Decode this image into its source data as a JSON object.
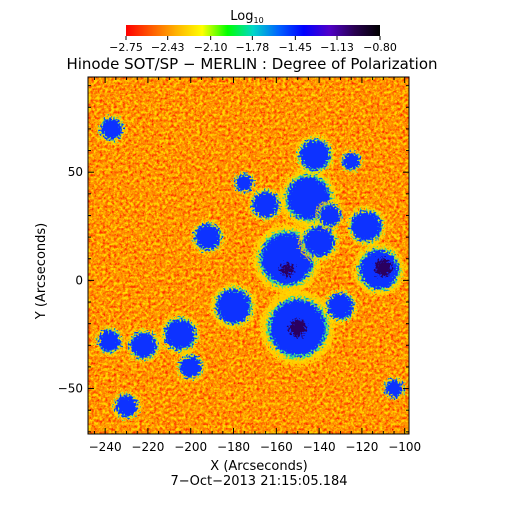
{
  "chart_data": {
    "type": "heatmap",
    "title": "Hinode SOT/SP − MERLIN : Degree of Polarization",
    "xlabel": "X (Arcseconds)",
    "ylabel": "Y (Arcseconds)",
    "timestamp": "7−Oct−2013 21:15:05.184",
    "xlim": [
      -248,
      -98
    ],
    "ylim": [
      -71,
      94
    ],
    "x_ticks": [
      -240,
      -220,
      -200,
      -180,
      -160,
      -140,
      -120,
      -100
    ],
    "y_ticks": [
      -50,
      0,
      50
    ],
    "colorbar": {
      "label_base": "Log",
      "label_sub": "10",
      "range": [
        -2.75,
        -0.8
      ],
      "ticks": [
        -2.75,
        -2.43,
        -2.1,
        -1.78,
        -1.45,
        -1.13,
        -0.8
      ],
      "tick_labels": [
        "−2.75",
        "−2.43",
        "−2.10",
        "−1.78",
        "−1.45",
        "−1.13",
        "−0.80"
      ],
      "colors": [
        "#ff0000",
        "#ff5a00",
        "#ffb400",
        "#ffff00",
        "#00ff00",
        "#00d8c8",
        "#0064ff",
        "#0000ff",
        "#5000c8",
        "#280050",
        "#000000"
      ]
    },
    "blue_regions": [
      {
        "x": -155,
        "y": 10,
        "r": 12
      },
      {
        "x": -150,
        "y": -22,
        "r": 13
      },
      {
        "x": -145,
        "y": 38,
        "r": 10
      },
      {
        "x": -142,
        "y": 58,
        "r": 7
      },
      {
        "x": -140,
        "y": 18,
        "r": 7
      },
      {
        "x": -112,
        "y": 5,
        "r": 9
      },
      {
        "x": -118,
        "y": 25,
        "r": 7
      },
      {
        "x": -180,
        "y": -12,
        "r": 8
      },
      {
        "x": -205,
        "y": -25,
        "r": 7
      },
      {
        "x": -222,
        "y": -30,
        "r": 6
      },
      {
        "x": -192,
        "y": 20,
        "r": 6
      },
      {
        "x": -165,
        "y": 35,
        "r": 6
      },
      {
        "x": -130,
        "y": -12,
        "r": 6
      },
      {
        "x": -200,
        "y": -40,
        "r": 5
      },
      {
        "x": -238,
        "y": -28,
        "r": 5
      },
      {
        "x": -175,
        "y": 45,
        "r": 4
      },
      {
        "x": -237,
        "y": 70,
        "r": 5
      },
      {
        "x": -230,
        "y": -58,
        "r": 5
      },
      {
        "x": -105,
        "y": -50,
        "r": 4
      },
      {
        "x": -125,
        "y": 55,
        "r": 4
      },
      {
        "x": -135,
        "y": 30,
        "r": 5
      }
    ],
    "dark_cores": [
      {
        "x": -110,
        "y": 6,
        "r": 4
      },
      {
        "x": -155,
        "y": 5,
        "r": 3
      },
      {
        "x": -150,
        "y": -22,
        "r": 4
      }
    ]
  }
}
